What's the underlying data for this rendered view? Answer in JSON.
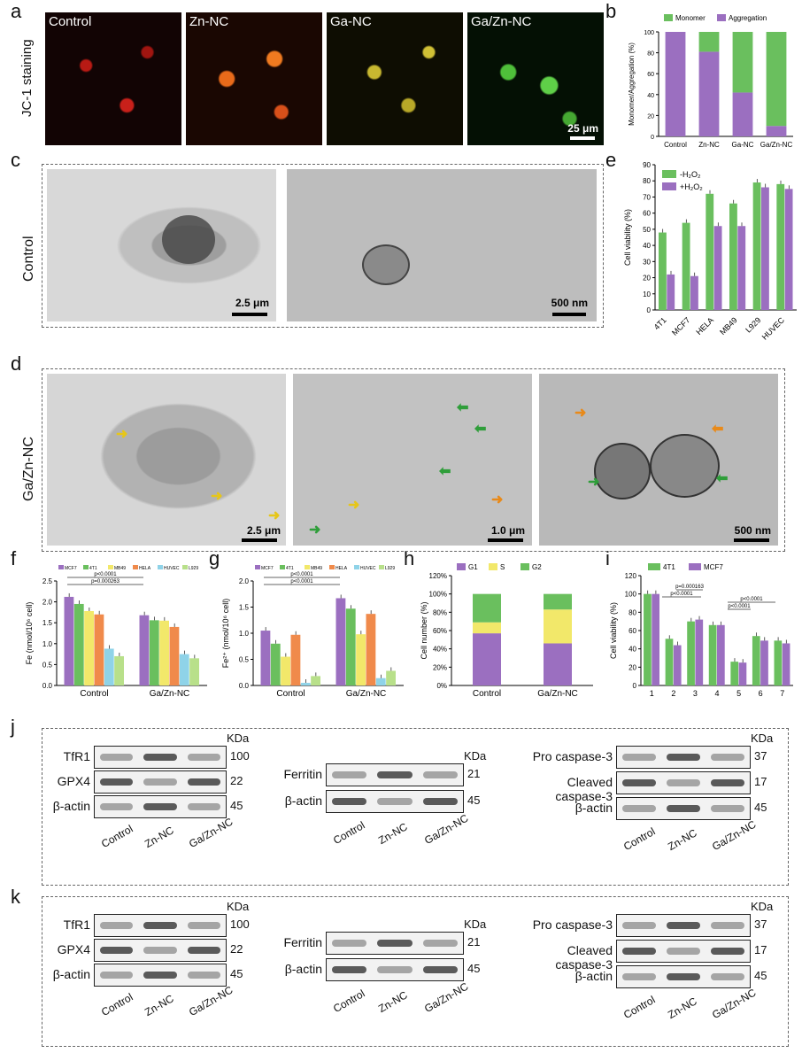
{
  "panels": {
    "a": "a",
    "b": "b",
    "c": "c",
    "d": "d",
    "e": "e",
    "f": "f",
    "g": "g",
    "h": "h",
    "i": "i",
    "j": "j",
    "k": "k"
  },
  "panel_a": {
    "ylabel": "JC-1 staining",
    "images": [
      "Control",
      "Zn-NC",
      "Ga-NC",
      "Ga/Zn-NC"
    ],
    "scale": "25 μm",
    "colors": [
      "#d8281e",
      "#e8641a",
      "#d6c428",
      "#4fbf3a"
    ]
  },
  "panel_c": {
    "ylabel": "Control",
    "scale1": "2.5 μm",
    "scale2": "500 nm"
  },
  "panel_d": {
    "ylabel": "Ga/Zn-NC",
    "scale1": "2.5 μm",
    "scale2": "1.0 μm",
    "scale3": "500 nm"
  },
  "chart_data": [
    {
      "panel": "b",
      "type": "bar",
      "categories": [
        "Control",
        "Zn-NC",
        "Ga-NC",
        "Ga/Zn-NC"
      ],
      "series": [
        {
          "name": "Monomer",
          "values": [
            0,
            19,
            58,
            90
          ],
          "color": "#6abf5e"
        },
        {
          "name": "Aggregation",
          "values": [
            100,
            81,
            42,
            10
          ],
          "color": "#9b6fc0"
        }
      ],
      "ylabel": "Monomer/Aggregation (%)",
      "ylim": [
        0,
        100
      ],
      "yticks": [
        "0",
        "20",
        "40",
        "60",
        "80",
        "100"
      ]
    },
    {
      "panel": "e",
      "type": "bar",
      "categories": [
        "4T1",
        "MCF7",
        "HELA",
        "MB49",
        "L929",
        "HUVEC"
      ],
      "series": [
        {
          "name": "-H₂O₂",
          "values": [
            48,
            54,
            72,
            66,
            79,
            78
          ],
          "color": "#6abf5e"
        },
        {
          "name": "+H₂O₂",
          "values": [
            22,
            21,
            52,
            52,
            76,
            75
          ],
          "color": "#9b6fc0"
        }
      ],
      "ylabel": "Cell viability (%)",
      "ylim": [
        0,
        90
      ],
      "yticks": [
        "0",
        "10",
        "20",
        "30",
        "40",
        "50",
        "60",
        "70",
        "80",
        "90"
      ]
    },
    {
      "panel": "f",
      "type": "bar",
      "categories": [
        "Control",
        "Ga/Zn-NC"
      ],
      "series": [
        {
          "name": "MCF7",
          "values": [
            2.12,
            1.68
          ],
          "color": "#9b6fc0"
        },
        {
          "name": "4T1",
          "values": [
            1.95,
            1.56
          ],
          "color": "#6abf5e"
        },
        {
          "name": "MB49",
          "values": [
            1.78,
            1.55
          ],
          "color": "#f2e86a"
        },
        {
          "name": "HELA",
          "values": [
            1.7,
            1.4
          ],
          "color": "#f08a4b"
        },
        {
          "name": "HUVEC",
          "values": [
            0.88,
            0.75
          ],
          "color": "#8fd3e8"
        },
        {
          "name": "L929",
          "values": [
            0.7,
            0.65
          ],
          "color": "#b8e08a"
        }
      ],
      "ylabel": "Fe (nmol/10⁶ cell)",
      "ylim": [
        0,
        2.5
      ],
      "yticks": [
        "0.0",
        "0.5",
        "1.0",
        "1.5",
        "2.0",
        "2.5"
      ],
      "annotations": [
        "p<0.0001",
        "p=0.000263"
      ]
    },
    {
      "panel": "g",
      "type": "bar",
      "categories": [
        "Control",
        "Ga/Zn-NC"
      ],
      "series": [
        {
          "name": "MCF7",
          "values": [
            1.05,
            1.67
          ],
          "color": "#9b6fc0"
        },
        {
          "name": "4T1",
          "values": [
            0.8,
            1.47
          ],
          "color": "#6abf5e"
        },
        {
          "name": "MB49",
          "values": [
            0.55,
            0.98
          ],
          "color": "#f2e86a"
        },
        {
          "name": "HELA",
          "values": [
            0.97,
            1.37
          ],
          "color": "#f08a4b"
        },
        {
          "name": "HUVEC",
          "values": [
            0.05,
            0.14
          ],
          "color": "#8fd3e8"
        },
        {
          "name": "L929",
          "values": [
            0.18,
            0.28
          ],
          "color": "#b8e08a"
        }
      ],
      "ylabel": "Fe²⁺ (nmol/10⁶ cell)",
      "ylim": [
        0,
        2.0
      ],
      "yticks": [
        "0.0",
        "0.5",
        "1.0",
        "1.5",
        "2.0"
      ],
      "annotations": [
        "p<0.0001",
        "p<0.0001"
      ]
    },
    {
      "panel": "h",
      "type": "bar",
      "categories": [
        "Control",
        "Ga/Zn-NC"
      ],
      "series": [
        {
          "name": "G1",
          "values": [
            57,
            46
          ],
          "color": "#9b6fc0"
        },
        {
          "name": "S",
          "values": [
            12,
            37
          ],
          "color": "#f2e86a"
        },
        {
          "name": "G2",
          "values": [
            31,
            17
          ],
          "color": "#6abf5e"
        }
      ],
      "ylabel": "Cell number (%)",
      "ylim": [
        0,
        120
      ],
      "yticks": [
        "0%",
        "20%",
        "40%",
        "60%",
        "80%",
        "100%",
        "120%"
      ]
    },
    {
      "panel": "i",
      "type": "bar",
      "categories": [
        "1",
        "2",
        "3",
        "4",
        "5",
        "6",
        "7"
      ],
      "series": [
        {
          "name": "4T1",
          "values": [
            100,
            51,
            70,
            66,
            26,
            54,
            49
          ],
          "color": "#6abf5e"
        },
        {
          "name": "MCF7",
          "values": [
            100,
            44,
            72,
            66,
            25,
            49,
            46
          ],
          "color": "#9b6fc0"
        }
      ],
      "ylabel": "Cell viability (%)",
      "ylim": [
        0,
        120
      ],
      "yticks": [
        "0",
        "20",
        "40",
        "60",
        "80",
        "100",
        "120"
      ],
      "annotations": [
        "p=0.000163",
        "p<0.0001",
        "p<0.0001",
        "p<0.0001"
      ]
    }
  ],
  "blot_j": {
    "g1": {
      "rows": [
        "TfR1",
        "GPX4",
        "β-actin"
      ],
      "kda": [
        "100",
        "22",
        "45"
      ],
      "lanes": [
        "Control",
        "Zn-NC",
        "Ga/Zn-NC"
      ],
      "unit": "KDa"
    },
    "g2": {
      "rows": [
        "Ferritin",
        "β-actin"
      ],
      "kda": [
        "21",
        "45"
      ],
      "lanes": [
        "Control",
        "Zn-NC",
        "Ga/Zn-NC"
      ],
      "unit": "KDa"
    },
    "g3": {
      "rows": [
        "Pro caspase-3",
        "Cleaved caspase-3",
        "β-actin"
      ],
      "kda": [
        "37",
        "17",
        "45"
      ],
      "lanes": [
        "Control",
        "Zn-NC",
        "Ga/Zn-NC"
      ],
      "unit": "KDa"
    }
  },
  "blot_k": {
    "g1": {
      "rows": [
        "TfR1",
        "GPX4",
        "β-actin"
      ],
      "kda": [
        "100",
        "22",
        "45"
      ],
      "lanes": [
        "Control",
        "Zn-NC",
        "Ga/Zn-NC"
      ],
      "unit": "KDa"
    },
    "g2": {
      "rows": [
        "Ferritin",
        "β-actin"
      ],
      "kda": [
        "21",
        "45"
      ],
      "lanes": [
        "Control",
        "Zn-NC",
        "Ga/Zn-NC"
      ],
      "unit": "KDa"
    },
    "g3": {
      "rows": [
        "Pro caspase-3",
        "Cleaved caspase-3",
        "β-actin"
      ],
      "kda": [
        "37",
        "17",
        "45"
      ],
      "lanes": [
        "Control",
        "Zn-NC",
        "Ga/Zn-NC"
      ],
      "unit": "KDa"
    }
  }
}
